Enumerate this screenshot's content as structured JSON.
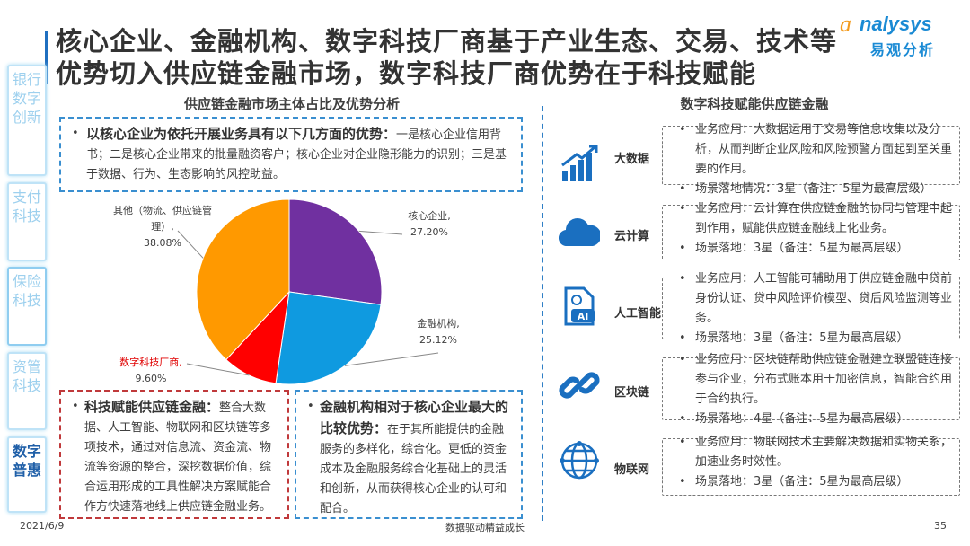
{
  "title": "核心企业、金融机构、数字科技厂商基于产业生态、交易、技术等优势切入供应链金融市场，数字科技厂商优势在于科技赋能",
  "logo": {
    "en": "nalysys",
    "a": "a",
    "cn": "易观分析"
  },
  "sidebar": {
    "tabs": [
      {
        "label": "银行数字创新",
        "active": false
      },
      {
        "label": "支付科技",
        "active": false
      },
      {
        "label": "保险科技",
        "active": false
      },
      {
        "label": "资管科技",
        "active": false
      },
      {
        "label": "数字普惠",
        "active": true
      }
    ]
  },
  "left": {
    "heading": "供应链金融市场主体占比及优势分析",
    "top_box": {
      "bold": "以核心企业为依托开展业务具有以下几方面的优势：",
      "text": "一是核心企业信用背书；二是核心企业带来的批量融资客户；核心企业对企业隐形能力的识别；三是基于数据、行为、生态影响的风控助益。"
    },
    "box_red": {
      "bold": "科技赋能供应链金融：",
      "text": "整合大数据、人工智能、物联网和区块链等多项技术，通过对信息流、资金流、物流等资源的整合，深挖数据价值，综合运用形成的工具性解决方案赋能合作方快速落地线上供应链金融业务。"
    },
    "box_blue": {
      "bold": "金融机构相对于核心企业最大的比较优势：",
      "text": "在于其所能提供的金融服务的多样化，综合化。更低的资金成本及金融服务综合化基础上的灵活和创新，从而获得核心企业的认可和配合。"
    }
  },
  "chart_data": {
    "type": "pie",
    "start": "top-clockwise",
    "slices": [
      {
        "label": "核心企业,",
        "value": 27.2,
        "display": "27.20%",
        "color": "#7030a0"
      },
      {
        "label": "金融机构,",
        "value": 25.12,
        "display": "25.12%",
        "color": "#0f9ae0"
      },
      {
        "label": "数字科技厂商,",
        "value": 9.6,
        "display": "9.60%",
        "color": "#ff0000",
        "label_color": "#e00000"
      },
      {
        "label": "其他（物流、供应链管理）,",
        "value": 38.08,
        "display": "38.08%",
        "color": "#ff9900"
      }
    ]
  },
  "right": {
    "heading": "数字科技赋能供应链金融",
    "rows": [
      {
        "label": "大数据",
        "icon": "bar-chart-growth-icon",
        "items": [
          "业务应用：大数据运用于交易等信息收集以及分析，从而判断企业风险和风险预警方面起到至关重要的作用。",
          "场景落地情况：3星（备注：5星为最高层级）"
        ]
      },
      {
        "label": "云计算",
        "icon": "cloud-icon",
        "items": [
          "业务应用：云计算在供应链金融的协同与管理中起到作用，赋能供应链金融线上化业务。",
          "场景落地：3星（备注：5星为最高层级）"
        ]
      },
      {
        "label": "人工智能",
        "icon": "ai-document-icon",
        "icon_text": "AI",
        "items": [
          "业务应用：人工智能可辅助用于供应链金融中贷前身份认证、贷中风险评价模型、贷后风险监测等业务。",
          "场景落地：3星（备注：5星为最高层级）"
        ]
      },
      {
        "label": "区块链",
        "icon": "chain-link-icon",
        "items": [
          "业务应用：区块链帮助供应链金融建立联盟链连接参与企业，分布式账本用于加密信息，智能合约用于合约执行。",
          "场景落地：4星（备注：5星为最高层级）"
        ]
      },
      {
        "label": "物联网",
        "icon": "globe-network-icon",
        "items": [
          "业务应用：物联网技术主要解决数据和实物关系，加速业务时效性。",
          "场景落地：3星（备注：5星为最高层级）"
        ]
      }
    ]
  },
  "footer": {
    "date": "2021/6/9",
    "slogan": "数据驱动精益成长",
    "page": "35"
  },
  "colors": {
    "accent": "#1f6fc0",
    "dash_blue": "#3a8fd0",
    "dash_red": "#c0393b"
  }
}
